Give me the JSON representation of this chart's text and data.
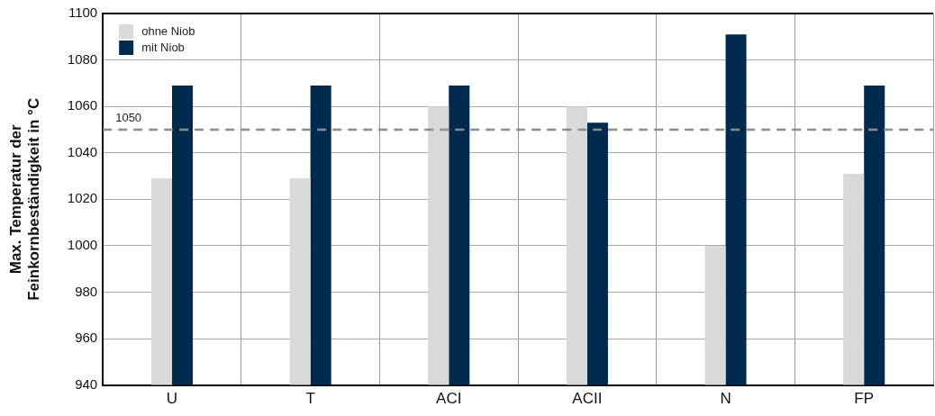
{
  "chart_data": {
    "type": "bar",
    "ylabel": "Max. Temperatur der\nFeinkornbeständigkeit in °C",
    "categories": [
      "U",
      "T",
      "ACI",
      "ACII",
      "N",
      "FP"
    ],
    "series": [
      {
        "name": "ohne Niob",
        "color": "#d9d9d9",
        "values": [
          1029,
          1029,
          1060,
          1060,
          1000,
          1031
        ]
      },
      {
        "name": "mit Niob",
        "color": "#002b4e",
        "values": [
          1069,
          1069,
          1069,
          1053,
          1091,
          1069
        ]
      }
    ],
    "ylim": [
      940,
      1100
    ],
    "yticks": [
      940,
      960,
      980,
      1000,
      1020,
      1040,
      1060,
      1080,
      1100
    ],
    "ref_lines": [
      {
        "axis": "y",
        "value": 1050,
        "label": "1050",
        "color": "#8c8c8c",
        "line_style": "dashed"
      }
    ],
    "grid": true,
    "legend": "top left"
  }
}
